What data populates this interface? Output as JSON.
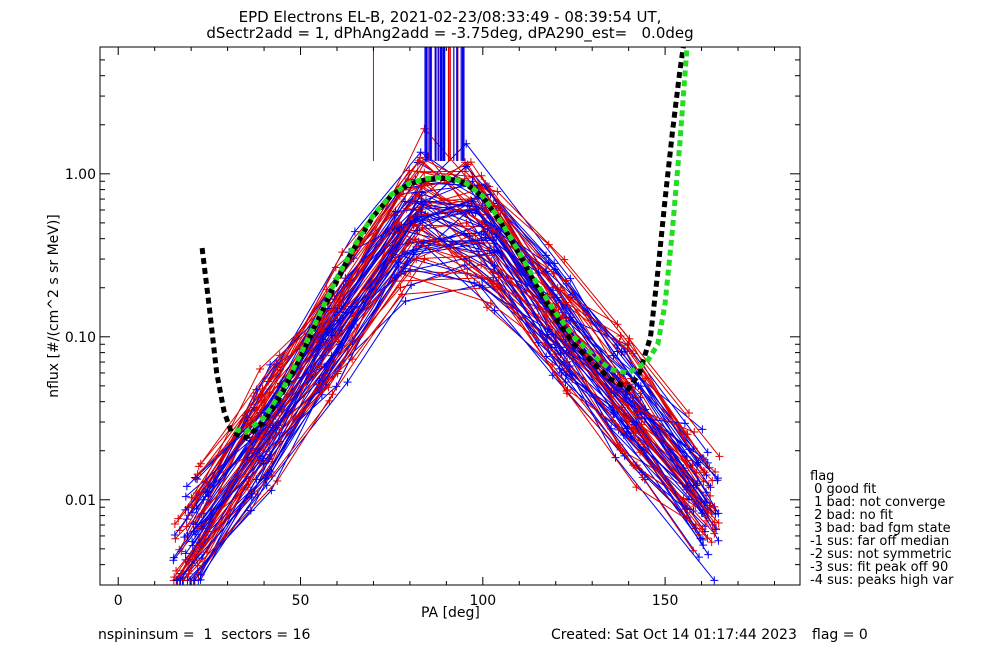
{
  "chart_data": {
    "type": "line",
    "title": "EPD Electrons EL-B, 2021-02-23/08:33:49 - 08:39:54 UT,",
    "subtitle": "dSectr2add = 1, dPhAng2add = -3.75deg, dPA290_est=   0.0deg",
    "xlabel": "PA [deg]",
    "ylabel": "nflux [#/(cm^2 s sr MeV)]",
    "xlim": [
      -5,
      187
    ],
    "ylim": [
      0.003,
      6.0
    ],
    "yscale": "log",
    "xticks": [
      "0",
      "50",
      "100",
      "150"
    ],
    "yticks": [
      "0.01",
      "0.10",
      "1.00"
    ],
    "grid": false,
    "series": [
      {
        "color": "#000000",
        "x": [
          23,
          25,
          27,
          29,
          31,
          35,
          40,
          45,
          50,
          55,
          60,
          65,
          70,
          75,
          80,
          85,
          90,
          95,
          100,
          105,
          110,
          115,
          120,
          125,
          130,
          135,
          140,
          143,
          146,
          148,
          150,
          152,
          154,
          155
        ],
        "y": [
          0.35,
          0.15,
          0.06,
          0.035,
          0.026,
          0.024,
          0.03,
          0.045,
          0.075,
          0.13,
          0.22,
          0.36,
          0.55,
          0.74,
          0.87,
          0.93,
          0.94,
          0.88,
          0.72,
          0.5,
          0.32,
          0.2,
          0.13,
          0.09,
          0.07,
          0.055,
          0.048,
          0.06,
          0.1,
          0.25,
          0.7,
          1.8,
          4.2,
          6.0
        ]
      },
      {
        "color": "#22dd22",
        "x": [
          32,
          35,
          40,
          45,
          50,
          55,
          60,
          65,
          70,
          75,
          80,
          85,
          90,
          95,
          100,
          105,
          110,
          115,
          120,
          125,
          130,
          135,
          140,
          145,
          148,
          150,
          152,
          154,
          156
        ],
        "y": [
          0.027,
          0.026,
          0.032,
          0.047,
          0.078,
          0.135,
          0.23,
          0.37,
          0.56,
          0.75,
          0.88,
          0.94,
          0.95,
          0.89,
          0.73,
          0.51,
          0.33,
          0.21,
          0.14,
          0.1,
          0.078,
          0.063,
          0.06,
          0.07,
          0.09,
          0.16,
          0.45,
          1.5,
          6.0
        ]
      }
    ]
  },
  "legend": {
    "title": "flag",
    "items": [
      " 0 good fit",
      " 1 bad: not converge",
      " 2 bad: no fit",
      " 3 bad: bad fgm state",
      "-1 sus: far off median",
      "-2 sus: not symmetric",
      "-3 sus: fit peak off 90",
      "-4 sus: peaks high var"
    ]
  },
  "footer": {
    "left": "nspininsum =  1  sectors = 16",
    "created": "Created: Sat Oct 14 01:17:44 2023",
    "flag": "flag = 0"
  },
  "colors": {
    "red_traces": "#dd0000",
    "blue_traces": "#0000ee",
    "fit_black": "#000000",
    "fit_green": "#22dd22"
  }
}
